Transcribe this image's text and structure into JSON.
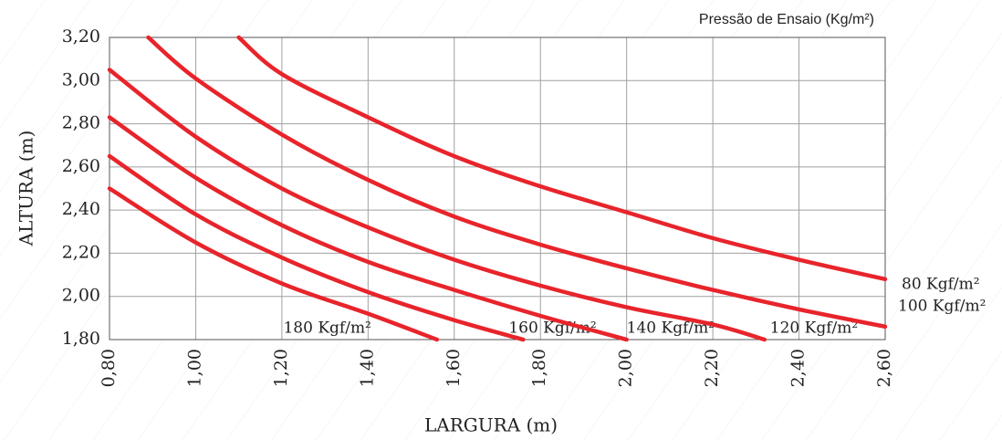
{
  "chart_data": {
    "type": "line",
    "title": "Pressão de Ensaio (Kg/m²)",
    "x_label": "LARGURA (m)",
    "y_label": "ALTURA (m)",
    "xlim": [
      0.8,
      2.6
    ],
    "ylim": [
      1.8,
      3.2
    ],
    "xticks": [
      {
        "value": 0.8,
        "label": "0,80"
      },
      {
        "value": 1.0,
        "label": "1,00"
      },
      {
        "value": 1.2,
        "label": "1,20"
      },
      {
        "value": 1.4,
        "label": "1,40"
      },
      {
        "value": 1.6,
        "label": "1,60"
      },
      {
        "value": 1.8,
        "label": "1,80"
      },
      {
        "value": 2.0,
        "label": "2,00"
      },
      {
        "value": 2.2,
        "label": "2,20"
      },
      {
        "value": 2.4,
        "label": "2,40"
      },
      {
        "value": 2.6,
        "label": "2,60"
      }
    ],
    "yticks": [
      {
        "value": 1.8,
        "label": "1,80"
      },
      {
        "value": 2.0,
        "label": "2,00"
      },
      {
        "value": 2.2,
        "label": "2,20"
      },
      {
        "value": 2.4,
        "label": "2,40"
      },
      {
        "value": 2.6,
        "label": "2,60"
      },
      {
        "value": 2.8,
        "label": "2,80"
      },
      {
        "value": 3.0,
        "label": "3,00"
      },
      {
        "value": 3.2,
        "label": "3,20"
      }
    ],
    "grid": true,
    "series": [
      {
        "name": "180 Kgf/m²",
        "color": "#e8242b",
        "x": [
          0.8,
          1.0,
          1.2,
          1.4,
          1.56
        ],
        "values": [
          2.5,
          2.25,
          2.06,
          1.92,
          1.8
        ]
      },
      {
        "name": "160 Kgf/m²",
        "color": "#e8242b",
        "x": [
          0.8,
          1.0,
          1.2,
          1.4,
          1.6,
          1.76
        ],
        "values": [
          2.65,
          2.38,
          2.18,
          2.02,
          1.89,
          1.8
        ]
      },
      {
        "name": "140 Kgf/m²",
        "color": "#e8242b",
        "x": [
          0.8,
          1.0,
          1.2,
          1.4,
          1.6,
          1.8,
          2.0
        ],
        "values": [
          2.83,
          2.55,
          2.33,
          2.16,
          2.03,
          1.91,
          1.8
        ]
      },
      {
        "name": "120 Kgf/m²",
        "color": "#e8242b",
        "x": [
          0.8,
          1.0,
          1.2,
          1.4,
          1.6,
          1.8,
          2.0,
          2.2,
          2.32
        ],
        "values": [
          3.05,
          2.74,
          2.5,
          2.32,
          2.17,
          2.05,
          1.95,
          1.87,
          1.8
        ]
      },
      {
        "name": "100 Kgf/m²",
        "color": "#e8242b",
        "x": [
          0.89,
          1.0,
          1.2,
          1.4,
          1.6,
          1.8,
          2.0,
          2.2,
          2.4,
          2.6
        ],
        "values": [
          3.2,
          3.01,
          2.75,
          2.54,
          2.37,
          2.24,
          2.13,
          2.03,
          1.94,
          1.86
        ]
      },
      {
        "name": "80 Kgf/m²",
        "color": "#e8242b",
        "x": [
          1.1,
          1.2,
          1.4,
          1.6,
          1.8,
          2.0,
          2.2,
          2.4,
          2.6
        ],
        "values": [
          3.2,
          3.03,
          2.83,
          2.65,
          2.51,
          2.39,
          2.27,
          2.17,
          2.08
        ]
      }
    ]
  }
}
